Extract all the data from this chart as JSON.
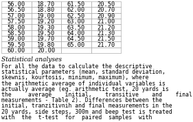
{
  "table_rows": [
    [
      "56.00",
      "18.70",
      "61.50",
      "20.50"
    ],
    [
      "56.50",
      "18.80",
      "62.00",
      "20.70"
    ],
    [
      "57.00",
      "19.00",
      "62.50",
      "20.90"
    ],
    [
      "57.50",
      "19.20",
      "63.00",
      "21.00"
    ],
    [
      "58.00",
      "19.30",
      "63.50",
      "21.20"
    ],
    [
      "58.50",
      "19.50",
      "64.00",
      "21.30"
    ],
    [
      "59.00",
      "19.70",
      "64.50",
      "21.50"
    ],
    [
      "59.50",
      "19.80",
      "65.00",
      "21.70"
    ],
    [
      "60.00",
      "20.00",
      "",
      ""
    ]
  ],
  "paragraph_title": "Statistical analyses",
  "paragraph_lines": [
    "For all the data to calculate the descriptive",
    "statistical parameters (mean, standard deviation,",
    "skewnis, kourtosis, minimum, maximum), where",
    "the arithmetic average of individual variables is",
    "actually average (eg. arithmetic test, 20 yards is",
    "the     average    initial,    transitive    and    final",
    "measurements - Table 2). Differences between the",
    "initial, tranzitivnih and final measurements in the",
    "20 yards, side steps, 300m and beep test is treated",
    "with  the  t-test  for  paired  samples  with"
  ],
  "bg_color": "#ffffff",
  "text_color": "#000000",
  "grid_color": "#999999",
  "table_font_size": 6.2,
  "title_font_size": 6.5,
  "body_font_size": 5.9
}
